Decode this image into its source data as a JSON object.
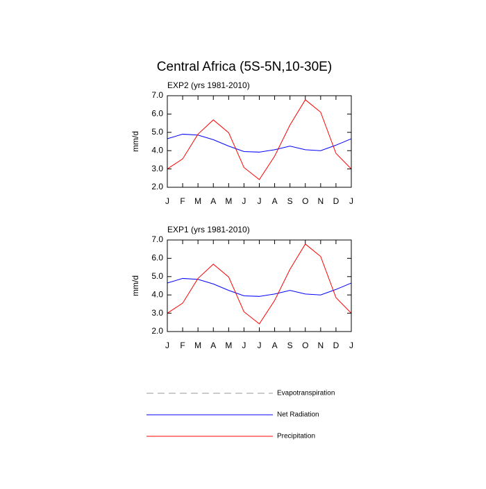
{
  "title": "Central Africa (5S-5N,10-30E)",
  "chart_data": [
    {
      "type": "line",
      "subtitle": "EXP2 (yrs 1981-2010)",
      "ylabel": "mm/d",
      "categories": [
        "J",
        "F",
        "M",
        "A",
        "M",
        "J",
        "J",
        "A",
        "S",
        "O",
        "N",
        "D",
        "J"
      ],
      "ylim": [
        2,
        7
      ],
      "yticks": [
        {
          "value": 2,
          "label": "2.0"
        },
        {
          "value": 3,
          "label": "3.0"
        },
        {
          "value": 4,
          "label": "4.0"
        },
        {
          "value": 5,
          "label": "5.0"
        },
        {
          "value": 6,
          "label": "6.0"
        },
        {
          "value": 7,
          "label": "7.0"
        }
      ],
      "series": [
        {
          "name": "Evapotranspiration",
          "color": "#999999",
          "dash": true,
          "values": [
            null,
            null,
            null,
            null,
            null,
            null,
            null,
            null,
            null,
            null,
            null,
            null,
            null
          ]
        },
        {
          "name": "Net Radiation",
          "color": "#0000ff",
          "values": [
            4.65,
            4.9,
            4.85,
            4.6,
            4.25,
            3.95,
            3.92,
            4.05,
            4.25,
            4.05,
            4.0,
            4.3,
            4.65
          ]
        },
        {
          "name": "Precipitation",
          "color": "#ff0000",
          "values": [
            3.0,
            3.55,
            4.9,
            5.68,
            4.98,
            3.08,
            2.42,
            3.7,
            5.4,
            6.78,
            6.1,
            3.85,
            3.0
          ]
        }
      ]
    },
    {
      "type": "line",
      "subtitle": "EXP1 (yrs 1981-2010)",
      "ylabel": "mm/d",
      "categories": [
        "J",
        "F",
        "M",
        "A",
        "M",
        "J",
        "J",
        "A",
        "S",
        "O",
        "N",
        "D",
        "J"
      ],
      "ylim": [
        2,
        7
      ],
      "yticks": [
        {
          "value": 2,
          "label": "2.0"
        },
        {
          "value": 3,
          "label": "3.0"
        },
        {
          "value": 4,
          "label": "4.0"
        },
        {
          "value": 5,
          "label": "5.0"
        },
        {
          "value": 6,
          "label": "6.0"
        },
        {
          "value": 7,
          "label": "7.0"
        }
      ],
      "series": [
        {
          "name": "Evapotranspiration",
          "color": "#999999",
          "dash": true,
          "values": [
            null,
            null,
            null,
            null,
            null,
            null,
            null,
            null,
            null,
            null,
            null,
            null,
            null
          ]
        },
        {
          "name": "Net Radiation",
          "color": "#0000ff",
          "values": [
            4.65,
            4.9,
            4.85,
            4.6,
            4.25,
            3.95,
            3.92,
            4.05,
            4.25,
            4.05,
            4.0,
            4.3,
            4.65
          ]
        },
        {
          "name": "Precipitation",
          "color": "#ff0000",
          "values": [
            3.0,
            3.55,
            4.9,
            5.68,
            4.98,
            3.08,
            2.42,
            3.7,
            5.4,
            6.78,
            6.1,
            3.85,
            3.0
          ]
        }
      ]
    }
  ]
}
